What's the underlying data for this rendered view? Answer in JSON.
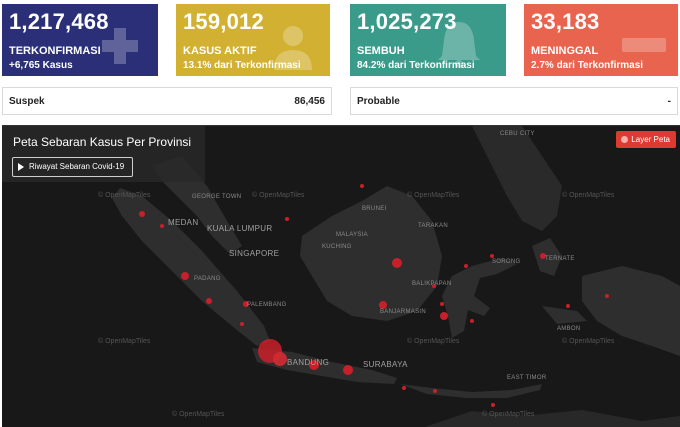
{
  "cards": {
    "confirmed": {
      "number": "1,217,468",
      "label": "TERKONFIRMASI",
      "sub": "+6,765 Kasus",
      "color": "#2a2f78",
      "icon": "plus-icon"
    },
    "active": {
      "number": "159,012",
      "label": "KASUS AKTIF",
      "sub": "13.1% dari Terkonfirmasi",
      "color": "#d2b132",
      "icon": "patient-icon"
    },
    "recovered": {
      "number": "1,025,273",
      "label": "SEMBUH",
      "sub": "84.2% dari Terkonfirmasi",
      "color": "#3b9b8a",
      "icon": "bell-icon"
    },
    "deaths": {
      "number": "33,183",
      "label": "MENINGGAL",
      "sub": "2.7% dari Terkonfirmasi",
      "color": "#e8644f",
      "icon": "minus-icon"
    }
  },
  "stats": {
    "suspek": {
      "label": "Suspek",
      "value": "86,456"
    },
    "probable": {
      "label": "Probable",
      "value": "-"
    }
  },
  "map": {
    "title": "Peta Sebaran Kasus Per Provinsi",
    "history_button": "Riwayat Sebaran Covid-19",
    "layer_button": "Layer Peta",
    "attribution": "© OpenMapTiles",
    "cities": {
      "medan": "MEDAN",
      "kuala_lumpur": "KUALA LUMPUR",
      "singapore": "SINGAPORE",
      "bandung": "BANDUNG",
      "surabaya": "SURABAYA",
      "george_town": "GEORGE TOWN",
      "padang": "PADANG",
      "palembang": "PALEMBANG",
      "kuching": "KUCHING",
      "malaysia": "MALAYSIA",
      "brunei": "BRUNEI",
      "tarakan": "TARAKAN",
      "balikpapan": "BALIKPAPAN",
      "banjarmasin": "BANJARMASIN",
      "sorong": "SORONG",
      "ternate": "TERNATE",
      "ambon": "AMBON",
      "cebu": "CEBU CITY",
      "east_timor": "EAST TIMOR"
    }
  }
}
